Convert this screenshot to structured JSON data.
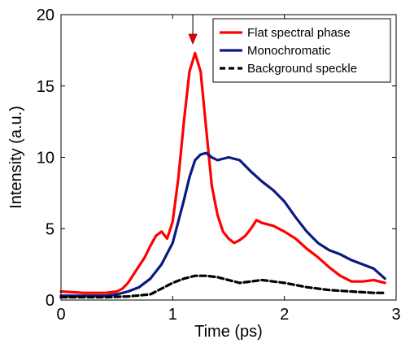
{
  "chart_data": {
    "type": "line",
    "xlabel": "Time (ps)",
    "ylabel": "Intensity (a.u.)",
    "xlim": [
      0,
      3
    ],
    "ylim": [
      0,
      20
    ],
    "xticks": [
      "0",
      "1",
      "2",
      "3"
    ],
    "yticks": [
      "0",
      "5",
      "10",
      "15",
      "20"
    ],
    "grid": false,
    "legend_position": "top-right",
    "annotation": {
      "type": "arrow",
      "x": 1.18,
      "points_to": "peak of Flat spectral phase"
    },
    "series": [
      {
        "name": "Flat spectral phase",
        "color": "#ff0000",
        "style": "solid",
        "x": [
          0,
          0.1,
          0.2,
          0.3,
          0.4,
          0.5,
          0.55,
          0.6,
          0.65,
          0.7,
          0.75,
          0.8,
          0.85,
          0.9,
          0.95,
          1.0,
          1.05,
          1.1,
          1.15,
          1.2,
          1.25,
          1.3,
          1.35,
          1.4,
          1.45,
          1.5,
          1.55,
          1.6,
          1.65,
          1.7,
          1.75,
          1.8,
          1.9,
          2.0,
          2.1,
          2.2,
          2.3,
          2.4,
          2.5,
          2.6,
          2.7,
          2.8,
          2.9
        ],
        "y": [
          0.6,
          0.55,
          0.5,
          0.5,
          0.5,
          0.6,
          0.8,
          1.2,
          1.8,
          2.4,
          3.0,
          3.8,
          4.5,
          4.8,
          4.3,
          5.5,
          8.5,
          12.5,
          16.0,
          17.3,
          16.0,
          12.0,
          8.0,
          6.0,
          4.8,
          4.3,
          4.0,
          4.2,
          4.5,
          5.0,
          5.6,
          5.4,
          5.2,
          4.8,
          4.3,
          3.6,
          3.0,
          2.3,
          1.7,
          1.3,
          1.3,
          1.4,
          1.2
        ]
      },
      {
        "name": "Monochromatic",
        "color": "#0a1a80",
        "style": "solid",
        "x": [
          0,
          0.1,
          0.2,
          0.3,
          0.4,
          0.5,
          0.6,
          0.7,
          0.8,
          0.9,
          1.0,
          1.05,
          1.1,
          1.15,
          1.2,
          1.25,
          1.3,
          1.35,
          1.4,
          1.5,
          1.6,
          1.7,
          1.8,
          1.9,
          2.0,
          2.1,
          2.2,
          2.3,
          2.4,
          2.5,
          2.6,
          2.7,
          2.8,
          2.9
        ],
        "y": [
          0.3,
          0.3,
          0.3,
          0.3,
          0.3,
          0.4,
          0.6,
          0.9,
          1.5,
          2.5,
          4.0,
          5.5,
          7.0,
          8.6,
          9.8,
          10.2,
          10.3,
          10.0,
          9.8,
          10.0,
          9.8,
          9.0,
          8.3,
          7.7,
          6.9,
          5.8,
          4.8,
          4.0,
          3.5,
          3.2,
          2.8,
          2.5,
          2.2,
          1.5
        ]
      },
      {
        "name": "Background speckle",
        "color": "#000000",
        "style": "dashed",
        "x": [
          0,
          0.2,
          0.4,
          0.6,
          0.8,
          0.9,
          1.0,
          1.1,
          1.2,
          1.3,
          1.4,
          1.5,
          1.6,
          1.7,
          1.8,
          1.9,
          2.0,
          2.2,
          2.4,
          2.6,
          2.8,
          2.9
        ],
        "y": [
          0.2,
          0.2,
          0.2,
          0.25,
          0.4,
          0.8,
          1.2,
          1.5,
          1.7,
          1.7,
          1.6,
          1.4,
          1.2,
          1.3,
          1.4,
          1.3,
          1.2,
          0.9,
          0.7,
          0.6,
          0.5,
          0.5
        ]
      }
    ]
  }
}
